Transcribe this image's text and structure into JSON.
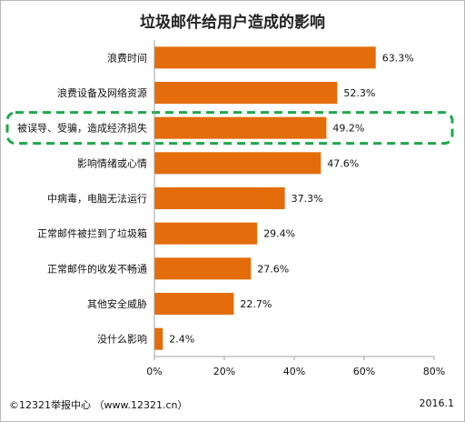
{
  "chart_data": {
    "type": "bar",
    "orientation": "horizontal",
    "title": "垃圾邮件给用户造成的影响",
    "categories": [
      "浪费时间",
      "浪费设备及网络资源",
      "被误导、受骗，造成经济损失",
      "影响情绪或心情",
      "中病毒，电脑无法运行",
      "正常邮件被拦到了垃圾箱",
      "正常邮件的收发不畅通",
      "其他安全威胁",
      "没什么影响"
    ],
    "values": [
      63.3,
      52.3,
      49.2,
      47.6,
      37.3,
      29.4,
      27.6,
      22.7,
      2.4
    ],
    "value_labels": [
      "63.3%",
      "52.3%",
      "49.2%",
      "47.6%",
      "37.3%",
      "29.4%",
      "27.6%",
      "22.7%",
      "2.4%"
    ],
    "xlim": [
      0,
      80
    ],
    "xticks": [
      "0%",
      "20%",
      "40%",
      "60%",
      "80%"
    ],
    "highlighted_category": "被误导、受骗，造成经济损失",
    "bar_color": "#e46c0a",
    "highlight_color": "#1fa84a",
    "grid": false
  },
  "footer": {
    "source": "©12321举报中心 （www.12321.cn）",
    "date": "2016.1"
  }
}
